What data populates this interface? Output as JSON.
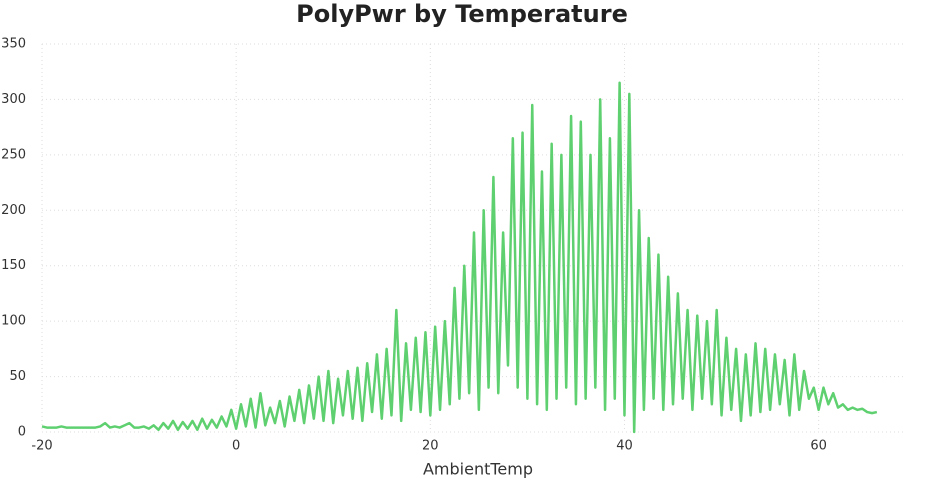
{
  "chart_data": {
    "type": "line",
    "title": "PolyPwr by Temperature",
    "x_label": "AmbientTemp",
    "xlim": [
      -20,
      69
    ],
    "xticks": [
      -20,
      0,
      20,
      40,
      60
    ],
    "ylim": [
      0,
      350
    ],
    "yticks": [
      0,
      50,
      100,
      150,
      200,
      250,
      300,
      350
    ],
    "grid": true,
    "x": [
      -20,
      -19.5,
      -19,
      -18.5,
      -18,
      -17.5,
      -17,
      -16.5,
      -16,
      -15.5,
      -15,
      -14.5,
      -14,
      -13.5,
      -13,
      -12.5,
      -12,
      -11.5,
      -11,
      -10.5,
      -10,
      -9.5,
      -9,
      -8.5,
      -8,
      -7.5,
      -7,
      -6.5,
      -6,
      -5.5,
      -5,
      -4.5,
      -4,
      -3.5,
      -3,
      -2.5,
      -2,
      -1.5,
      -1,
      -0.5,
      0,
      0.5,
      1,
      1.5,
      2,
      2.5,
      3,
      3.5,
      4,
      4.5,
      5,
      5.5,
      6,
      6.5,
      7,
      7.5,
      8,
      8.5,
      9,
      9.5,
      10,
      10.5,
      11,
      11.5,
      12,
      12.5,
      13,
      13.5,
      14,
      14.5,
      15,
      15.5,
      16,
      16.5,
      17,
      17.5,
      18,
      18.5,
      19,
      19.5,
      20,
      20.5,
      21,
      21.5,
      22,
      22.5,
      23,
      23.5,
      24,
      24.5,
      25,
      25.5,
      26,
      26.5,
      27,
      27.5,
      28,
      28.5,
      29,
      29.5,
      30,
      30.5,
      31,
      31.5,
      32,
      32.5,
      33,
      33.5,
      34,
      34.5,
      35,
      35.5,
      36,
      36.5,
      37,
      37.5,
      38,
      38.5,
      39,
      39.5,
      40,
      40.5,
      41,
      41.5,
      42,
      42.5,
      43,
      43.5,
      44,
      44.5,
      45,
      45.5,
      46,
      46.5,
      47,
      47.5,
      48,
      48.5,
      49,
      49.5,
      50,
      50.5,
      51,
      51.5,
      52,
      52.5,
      53,
      53.5,
      54,
      54.5,
      55,
      55.5,
      56,
      56.5,
      57,
      57.5,
      58,
      58.5,
      59,
      59.5,
      60,
      60.5,
      61,
      61.5,
      62,
      62.5,
      63,
      63.5,
      64,
      64.5,
      65,
      65.5,
      66
    ],
    "series": [
      {
        "name": "PolyPwr",
        "color": "#5fd070",
        "values": [
          5,
          4,
          4,
          4,
          5,
          4,
          4,
          4,
          4,
          4,
          4,
          4,
          5,
          8,
          4,
          5,
          4,
          6,
          8,
          4,
          4,
          5,
          3,
          6,
          2,
          8,
          3,
          10,
          2,
          9,
          3,
          10,
          2,
          12,
          3,
          11,
          4,
          14,
          5,
          20,
          3,
          25,
          5,
          30,
          4,
          35,
          6,
          22,
          8,
          28,
          5,
          32,
          10,
          38,
          8,
          42,
          12,
          50,
          10,
          55,
          8,
          48,
          15,
          55,
          12,
          58,
          10,
          62,
          18,
          70,
          12,
          75,
          15,
          110,
          10,
          80,
          20,
          85,
          18,
          90,
          15,
          95,
          20,
          100,
          25,
          130,
          30,
          150,
          35,
          180,
          20,
          200,
          40,
          230,
          35,
          180,
          60,
          265,
          40,
          270,
          30,
          295,
          25,
          235,
          20,
          260,
          30,
          250,
          40,
          285,
          25,
          280,
          30,
          250,
          40,
          300,
          20,
          265,
          30,
          315,
          15,
          305,
          0,
          200,
          20,
          175,
          30,
          160,
          20,
          140,
          25,
          125,
          30,
          110,
          20,
          105,
          30,
          100,
          25,
          110,
          15,
          85,
          20,
          75,
          10,
          70,
          15,
          80,
          18,
          75,
          20,
          70,
          25,
          65,
          15,
          70,
          20,
          55,
          30,
          40,
          20,
          40,
          25,
          35,
          22,
          25,
          20,
          22,
          20,
          21,
          18,
          17,
          18
        ]
      }
    ]
  }
}
